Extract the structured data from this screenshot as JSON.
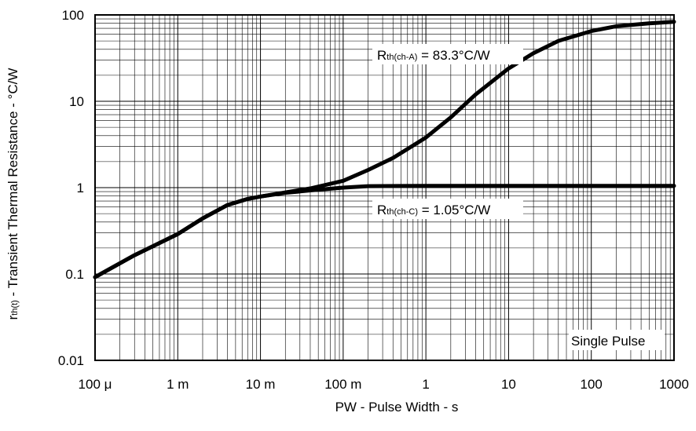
{
  "chart_data": {
    "type": "line",
    "x_scale": "log",
    "y_scale": "log",
    "xlim": [
      0.0001,
      1000
    ],
    "ylim": [
      0.01,
      100
    ],
    "grid": true,
    "xlabel": "PW - Pulse Width - s",
    "ylabel": {
      "prefix": "r",
      "sub": "th(t)",
      "suffix": " - Transient Thermal Resistance - °C/W"
    },
    "x_ticks": [
      {
        "value": 0.0001,
        "label": "100 μ"
      },
      {
        "value": 0.001,
        "label": "1 m"
      },
      {
        "value": 0.01,
        "label": "10 m"
      },
      {
        "value": 0.1,
        "label": "100 m"
      },
      {
        "value": 1,
        "label": "1"
      },
      {
        "value": 10,
        "label": "10"
      },
      {
        "value": 100,
        "label": "100"
      },
      {
        "value": 1000,
        "label": "1000"
      }
    ],
    "y_ticks": [
      {
        "value": 0.01,
        "label": "0.01"
      },
      {
        "value": 0.1,
        "label": "0.1"
      },
      {
        "value": 1,
        "label": "1"
      },
      {
        "value": 10,
        "label": "10"
      },
      {
        "value": 100,
        "label": "100"
      }
    ],
    "series": [
      {
        "points": [
          [
            0.0001,
            0.092
          ],
          [
            0.0003,
            0.165
          ],
          [
            0.001,
            0.29
          ],
          [
            0.002,
            0.44
          ],
          [
            0.004,
            0.63
          ],
          [
            0.007,
            0.74
          ],
          [
            0.01,
            0.79
          ],
          [
            0.02,
            0.87
          ],
          [
            0.04,
            0.93
          ],
          [
            0.1,
            1.0
          ],
          [
            0.2,
            1.04
          ],
          [
            1,
            1.05
          ],
          [
            10,
            1.05
          ],
          [
            100,
            1.05
          ],
          [
            1000,
            1.05
          ]
        ]
      },
      {
        "points": [
          [
            0.0001,
            0.092
          ],
          [
            0.0003,
            0.165
          ],
          [
            0.001,
            0.29
          ],
          [
            0.002,
            0.44
          ],
          [
            0.004,
            0.63
          ],
          [
            0.007,
            0.74
          ],
          [
            0.01,
            0.79
          ],
          [
            0.02,
            0.88
          ],
          [
            0.04,
            0.98
          ],
          [
            0.1,
            1.2
          ],
          [
            0.2,
            1.6
          ],
          [
            0.4,
            2.2
          ],
          [
            1,
            3.8
          ],
          [
            2,
            6.5
          ],
          [
            4,
            12
          ],
          [
            10,
            24
          ],
          [
            20,
            36
          ],
          [
            40,
            50
          ],
          [
            100,
            65
          ],
          [
            200,
            74
          ],
          [
            500,
            80
          ],
          [
            1000,
            83.3
          ]
        ]
      }
    ],
    "annotations": [
      {
        "name": "rth-ch-a",
        "prefix": "R",
        "sub": "th(ch-A)",
        "suffix": " = 83.3°C/W"
      },
      {
        "name": "rth-ch-c",
        "prefix": "R",
        "sub": "th(ch-C)",
        "suffix": " = 1.05°C/W"
      },
      {
        "name": "single-pulse",
        "text": "Single Pulse"
      }
    ]
  }
}
